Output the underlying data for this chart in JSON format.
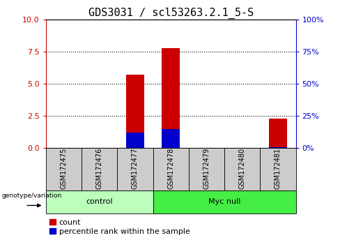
{
  "title": "GDS3031 / scl53263.2.1_5-S",
  "samples": [
    "GSM172475",
    "GSM172476",
    "GSM172477",
    "GSM172478",
    "GSM172479",
    "GSM172480",
    "GSM172481"
  ],
  "count_values": [
    0,
    0,
    5.7,
    7.8,
    0,
    0,
    2.3
  ],
  "percentile_values": [
    0,
    0,
    12,
    15,
    0,
    0,
    1
  ],
  "groups": [
    {
      "label": "control",
      "indices": [
        0,
        1,
        2
      ],
      "color": "#bbffbb"
    },
    {
      "label": "Myc null",
      "indices": [
        3,
        4,
        5,
        6
      ],
      "color": "#44ee44"
    }
  ],
  "left_ylim": [
    0,
    10
  ],
  "right_ylim": [
    0,
    100
  ],
  "left_yticks": [
    0,
    2.5,
    5,
    7.5,
    10
  ],
  "right_yticks": [
    0,
    25,
    50,
    75,
    100
  ],
  "left_ycolor": "#cc0000",
  "right_ycolor": "#0000cc",
  "bar_color": "#cc0000",
  "percentile_color": "#0000cc",
  "bar_width": 0.5,
  "grid_color": "black",
  "sample_box_color": "#cccccc",
  "control_color": "#bbffbb",
  "mycnull_color": "#44ee44",
  "genotype_label": "genotype/variation",
  "legend_count_label": "count",
  "legend_percentile_label": "percentile rank within the sample",
  "title_fontsize": 11,
  "tick_fontsize": 8,
  "sample_fontsize": 7,
  "group_fontsize": 8,
  "legend_fontsize": 8
}
